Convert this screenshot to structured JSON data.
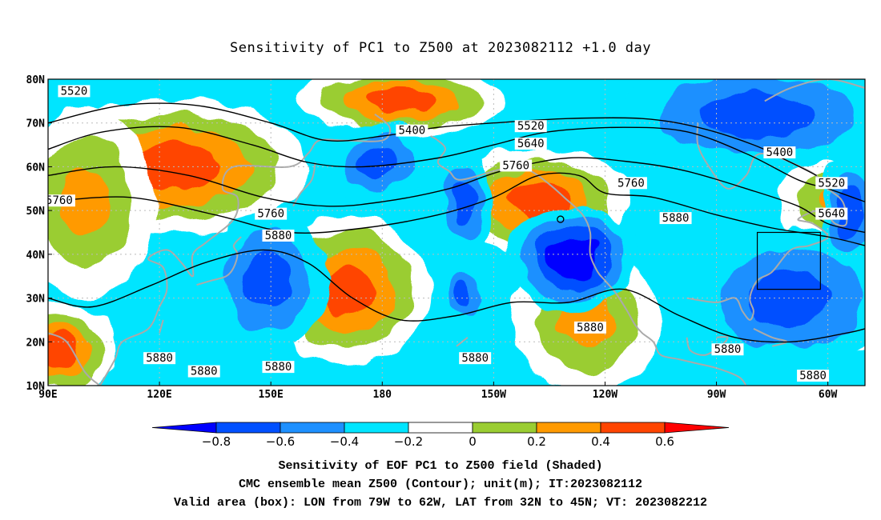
{
  "title": "Sensitivity of PC1 to Z500 at 2023082112 +1.0 day",
  "captions": [
    "Sensitivity of EOF PC1 to Z500 field (Shaded)",
    "CMC ensemble mean Z500 (Contour); unit(m); IT:2023082112",
    "Valid area (box): LON from 79W to 62W, LAT from 32N to 45N; VT: 2023082212"
  ],
  "map": {
    "lon_range": [
      90,
      310
    ],
    "lat_range": [
      10,
      80
    ],
    "lon_ticks": [
      {
        "lon": 90,
        "label": "90E"
      },
      {
        "lon": 120,
        "label": "120E"
      },
      {
        "lon": 150,
        "label": "150E"
      },
      {
        "lon": 180,
        "label": "180"
      },
      {
        "lon": 210,
        "label": "150W"
      },
      {
        "lon": 240,
        "label": "120W"
      },
      {
        "lon": 270,
        "label": "90W"
      },
      {
        "lon": 300,
        "label": "60W"
      }
    ],
    "lat_ticks": [
      {
        "lat": 80,
        "label": "80N"
      },
      {
        "lat": 70,
        "label": "70N"
      },
      {
        "lat": 60,
        "label": "60N"
      },
      {
        "lat": 50,
        "label": "50N"
      },
      {
        "lat": 40,
        "label": "40N"
      },
      {
        "lat": 30,
        "label": "30N"
      },
      {
        "lat": 20,
        "label": "20N"
      },
      {
        "lat": 10,
        "label": "10N"
      }
    ],
    "valid_box": {
      "lon_min": 281,
      "lon_max": 298,
      "lat_min": 32,
      "lat_max": 45
    },
    "marker": {
      "lon": 228,
      "lat": 48
    },
    "colors": {
      "land": "#aaaaaa",
      "contour": "#000000",
      "grid": "#bbbbbb"
    }
  },
  "colorbar": {
    "levels": [
      -0.8,
      -0.6,
      -0.4,
      -0.2,
      0,
      0.2,
      0.4,
      0.6
    ],
    "labels": [
      "-0.8",
      "-0.6",
      "-0.4",
      "-0.2",
      "0",
      "0.2",
      "0.4",
      "0.6"
    ],
    "colors": [
      "#0000ff",
      "#0050ff",
      "#1e90ff",
      "#00e5ff",
      "#ffffff",
      "#9acd32",
      "#ff9a00",
      "#ff4500",
      "#ff0000"
    ]
  },
  "anomalies": [
    {
      "lon": 123,
      "lat": 60,
      "rx": 24,
      "ry": 10,
      "level": 3
    },
    {
      "lon": 100,
      "lat": 52,
      "rx": 12,
      "ry": 14,
      "level": 2
    },
    {
      "lon": 93,
      "lat": 18,
      "rx": 10,
      "ry": 7,
      "level": 3
    },
    {
      "lon": 185,
      "lat": 75,
      "rx": 18,
      "ry": 5,
      "level": 3
    },
    {
      "lon": 222,
      "lat": 52,
      "rx": 16,
      "ry": 8,
      "level": 3
    },
    {
      "lon": 171,
      "lat": 32,
      "rx": 14,
      "ry": 11,
      "level": 3
    },
    {
      "lon": 235,
      "lat": 25,
      "rx": 13,
      "ry": 11,
      "level": 2
    },
    {
      "lon": 301,
      "lat": 52,
      "rx": 9,
      "ry": 6,
      "level": 2
    },
    {
      "lon": 307,
      "lat": 27,
      "rx": 6,
      "ry": 6,
      "level": 2
    },
    {
      "lon": 149,
      "lat": 34,
      "rx": 12,
      "ry": 12,
      "level": -2
    },
    {
      "lon": 179,
      "lat": 61,
      "rx": 10,
      "ry": 7,
      "level": -2
    },
    {
      "lon": 231,
      "lat": 39,
      "rx": 13,
      "ry": 9,
      "level": -3
    },
    {
      "lon": 290,
      "lat": 30,
      "rx": 20,
      "ry": 12,
      "level": -2
    },
    {
      "lon": 281,
      "lat": 72,
      "rx": 28,
      "ry": 9,
      "level": -2
    },
    {
      "lon": 202,
      "lat": 52,
      "rx": 6,
      "ry": 9,
      "level": -2
    },
    {
      "lon": 306,
      "lat": 50,
      "rx": 6,
      "ry": 10,
      "level": -2
    },
    {
      "lon": 202,
      "lat": 31,
      "rx": 4,
      "ry": 6,
      "level": -2
    }
  ],
  "contours": [
    {
      "value": 5400,
      "points": [
        [
          90,
          70
        ],
        [
          110,
          74
        ],
        [
          130,
          74
        ],
        [
          150,
          70
        ],
        [
          165,
          66
        ],
        [
          180,
          67
        ],
        [
          195,
          69
        ],
        [
          210,
          70
        ],
        [
          230,
          71
        ],
        [
          250,
          71
        ],
        [
          265,
          69
        ],
        [
          280,
          65
        ],
        [
          290,
          61
        ],
        [
          297,
          58
        ]
      ]
    },
    {
      "value": 5520,
      "points": [
        [
          90,
          64
        ],
        [
          105,
          68
        ],
        [
          125,
          69
        ],
        [
          145,
          65
        ],
        [
          160,
          61
        ],
        [
          175,
          60
        ],
        [
          195,
          62
        ],
        [
          210,
          65
        ],
        [
          225,
          68
        ],
        [
          245,
          69
        ],
        [
          262,
          68
        ],
        [
          278,
          63
        ],
        [
          292,
          57
        ],
        [
          300,
          55
        ],
        [
          310,
          52
        ]
      ]
    },
    {
      "value": 5640,
      "points": [
        [
          90,
          58
        ],
        [
          108,
          60
        ],
        [
          128,
          58
        ],
        [
          148,
          53
        ],
        [
          165,
          51
        ],
        [
          180,
          52
        ],
        [
          198,
          55
        ],
        [
          212,
          59
        ],
        [
          230,
          62
        ],
        [
          248,
          61
        ],
        [
          262,
          59
        ],
        [
          278,
          55
        ],
        [
          292,
          51
        ],
        [
          300,
          47
        ],
        [
          310,
          45
        ]
      ]
    },
    {
      "value": 5760,
      "points": [
        [
          90,
          52
        ],
        [
          112,
          53
        ],
        [
          135,
          49
        ],
        [
          155,
          45
        ],
        [
          175,
          46
        ],
        [
          195,
          49
        ],
        [
          210,
          53
        ],
        [
          222,
          58
        ],
        [
          233,
          58
        ],
        [
          240,
          54
        ],
        [
          253,
          53
        ],
        [
          270,
          49
        ],
        [
          285,
          46
        ],
        [
          300,
          44
        ],
        [
          310,
          42
        ]
      ]
    },
    {
      "value": 5880,
      "points": [
        [
          90,
          30
        ],
        [
          102,
          28
        ],
        [
          118,
          33
        ],
        [
          132,
          38
        ],
        [
          148,
          41
        ],
        [
          160,
          38
        ],
        [
          172,
          30
        ],
        [
          185,
          25
        ],
        [
          200,
          26
        ],
        [
          215,
          29
        ],
        [
          230,
          29
        ],
        [
          245,
          32
        ],
        [
          260,
          26
        ],
        [
          275,
          21
        ],
        [
          290,
          20
        ],
        [
          305,
          22
        ],
        [
          310,
          23
        ]
      ]
    }
  ],
  "contour_labels": [
    {
      "lon": 97,
      "lat": 77,
      "text": "5520"
    },
    {
      "lon": 188,
      "lat": 68,
      "text": "5400"
    },
    {
      "lon": 220,
      "lat": 69,
      "text": "5520"
    },
    {
      "lon": 220,
      "lat": 65,
      "text": "5640"
    },
    {
      "lon": 216,
      "lat": 60,
      "text": "5760"
    },
    {
      "lon": 287,
      "lat": 63,
      "text": "5400"
    },
    {
      "lon": 301,
      "lat": 56,
      "text": "5520"
    },
    {
      "lon": 301,
      "lat": 49,
      "text": "5640"
    },
    {
      "lon": 93,
      "lat": 52,
      "text": "5760"
    },
    {
      "lon": 150,
      "lat": 49,
      "text": "5760"
    },
    {
      "lon": 152,
      "lat": 44,
      "text": "5880"
    },
    {
      "lon": 247,
      "lat": 56,
      "text": "5760"
    },
    {
      "lon": 259,
      "lat": 48,
      "text": "5880"
    },
    {
      "lon": 236,
      "lat": 23,
      "text": "5880"
    },
    {
      "lon": 273,
      "lat": 18,
      "text": "5880"
    },
    {
      "lon": 296,
      "lat": 12,
      "text": "5880"
    },
    {
      "lon": 205,
      "lat": 16,
      "text": "5880"
    },
    {
      "lon": 120,
      "lat": 16,
      "text": "5880"
    },
    {
      "lon": 132,
      "lat": 13,
      "text": "5880"
    },
    {
      "lon": 152,
      "lat": 14,
      "text": "5880"
    }
  ],
  "coastlines": [
    [
      [
        90,
        22
      ],
      [
        95,
        20
      ],
      [
        100,
        13
      ],
      [
        104,
        10
      ]
    ],
    [
      [
        104,
        10
      ],
      [
        108,
        16
      ],
      [
        110,
        20
      ],
      [
        117,
        23
      ],
      [
        120,
        28
      ],
      [
        122,
        32
      ],
      [
        121,
        37
      ],
      [
        117,
        39
      ],
      [
        122,
        41
      ],
      [
        126,
        38
      ],
      [
        129,
        35
      ],
      [
        129,
        40
      ],
      [
        133,
        43
      ],
      [
        140,
        48
      ],
      [
        141,
        53
      ],
      [
        137,
        55
      ],
      [
        140,
        60
      ],
      [
        155,
        60
      ],
      [
        160,
        63
      ],
      [
        163,
        66
      ],
      [
        170,
        66
      ],
      [
        180,
        66
      ],
      [
        182,
        69
      ],
      [
        178,
        72
      ]
    ],
    [
      [
        130,
        33
      ],
      [
        134,
        34
      ],
      [
        138,
        35
      ],
      [
        140,
        37
      ],
      [
        141,
        40
      ],
      [
        140,
        42
      ],
      [
        142,
        44
      ]
    ],
    [
      [
        120,
        22
      ],
      [
        121,
        25
      ]
    ],
    [
      [
        156,
        51
      ],
      [
        158,
        54
      ],
      [
        161,
        57
      ],
      [
        162,
        61
      ]
    ],
    [
      [
        193,
        67
      ],
      [
        195,
        66
      ],
      [
        197,
        64
      ],
      [
        195,
        61
      ],
      [
        198,
        59
      ],
      [
        201,
        57
      ],
      [
        210,
        59
      ],
      [
        215,
        60
      ],
      [
        220,
        59
      ],
      [
        225,
        56
      ],
      [
        229,
        53
      ],
      [
        234,
        49
      ],
      [
        236,
        45
      ],
      [
        236,
        40
      ],
      [
        238,
        36
      ],
      [
        240,
        34
      ],
      [
        243,
        31
      ],
      [
        246,
        27
      ],
      [
        248,
        24
      ],
      [
        250,
        22
      ],
      [
        253,
        20
      ],
      [
        255,
        17
      ],
      [
        260,
        16
      ],
      [
        265,
        15
      ],
      [
        270,
        14
      ],
      [
        276,
        12
      ],
      [
        278,
        10
      ]
    ],
    [
      [
        262,
        30
      ],
      [
        270,
        29
      ],
      [
        275,
        30
      ],
      [
        277,
        27
      ],
      [
        279,
        25
      ],
      [
        280,
        27
      ],
      [
        279,
        30
      ],
      [
        281,
        34
      ],
      [
        285,
        36
      ],
      [
        290,
        41
      ],
      [
        295,
        42
      ],
      [
        300,
        44
      ],
      [
        296,
        47
      ],
      [
        292,
        48
      ],
      [
        298,
        50
      ],
      [
        302,
        47
      ],
      [
        305,
        47
      ],
      [
        304,
        52
      ],
      [
        300,
        55
      ],
      [
        295,
        59
      ],
      [
        282,
        63
      ],
      [
        278,
        58
      ],
      [
        273,
        55
      ],
      [
        268,
        60
      ],
      [
        265,
        65
      ],
      [
        265,
        70
      ]
    ],
    [
      [
        262,
        21
      ],
      [
        263,
        18
      ],
      [
        267,
        17
      ],
      [
        271,
        19
      ],
      [
        273,
        21
      ],
      [
        270,
        21
      ]
    ],
    [
      [
        280,
        23
      ],
      [
        285,
        21
      ],
      [
        289,
        20
      ],
      [
        285,
        19
      ]
    ],
    [
      [
        283,
        75
      ],
      [
        290,
        78
      ],
      [
        300,
        80
      ],
      [
        310,
        78
      ]
    ],
    [
      [
        200,
        19
      ],
      [
        203,
        21
      ]
    ]
  ]
}
